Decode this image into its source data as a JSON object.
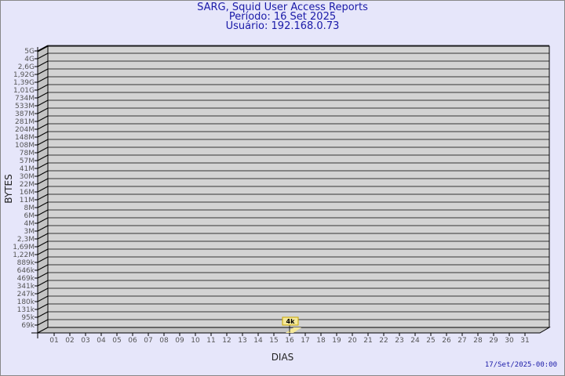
{
  "header": {
    "title": "SARG, Squid User Access Reports",
    "period": "Período: 16 Set 2025",
    "user": "Usuário: 192.168.0.73"
  },
  "footer": {
    "timestamp": "17/Set/2025-00:00"
  },
  "chart_data": {
    "type": "bar",
    "title": "SARG, Squid User Access Reports",
    "xlabel": "DIAS",
    "ylabel": "BYTES",
    "grid": true,
    "y_tick_labels": [
      "5G",
      "4G",
      "2,6G",
      "1,92G",
      "1,39G",
      "1,01G",
      "734M",
      "533M",
      "387M",
      "281M",
      "204M",
      "148M",
      "108M",
      "78M",
      "57M",
      "41M",
      "30M",
      "22M",
      "16M",
      "11M",
      "8M",
      "6M",
      "4M",
      "3M",
      "2,3M",
      "1,69M",
      "1,22M",
      "889k",
      "646k",
      "469k",
      "341k",
      "247k",
      "180k",
      "131k",
      "95k",
      "69k"
    ],
    "categories": [
      "01",
      "02",
      "03",
      "04",
      "05",
      "06",
      "07",
      "08",
      "09",
      "10",
      "11",
      "12",
      "13",
      "14",
      "15",
      "16",
      "17",
      "18",
      "19",
      "20",
      "21",
      "22",
      "23",
      "24",
      "25",
      "26",
      "27",
      "28",
      "29",
      "30",
      "31"
    ],
    "bars": [
      {
        "category": "16",
        "value": 4000,
        "label": "4k"
      }
    ],
    "colors": {
      "bar": "#f5e89a",
      "bar_border": "#c9a800",
      "wall": "#d3d3d3",
      "wall_side": "#c4c4c4",
      "title": "#1a1aa8"
    }
  }
}
